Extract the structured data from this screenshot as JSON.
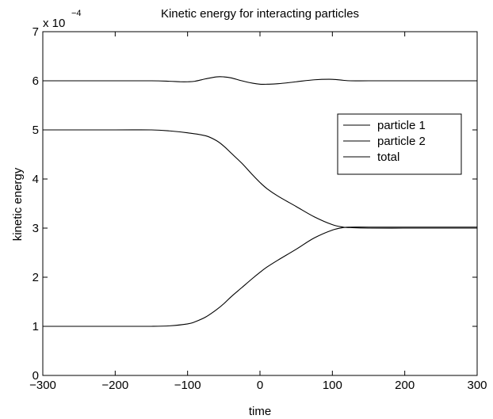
{
  "chart_data": {
    "type": "line",
    "title": "Kinetic energy for interacting particles",
    "xlabel": "time",
    "ylabel": "kinetic energy",
    "xlim": [
      -300,
      300
    ],
    "ylim": [
      0,
      7
    ],
    "y_multiplier_base": "x 10",
    "y_multiplier_exponent": "−4",
    "x_ticks": [
      -300,
      -200,
      -100,
      0,
      100,
      200,
      300
    ],
    "x_tick_labels": [
      "−300",
      "−200",
      "−100",
      "0",
      "100",
      "200",
      "300"
    ],
    "y_ticks": [
      0,
      1,
      2,
      3,
      4,
      5,
      6,
      7
    ],
    "y_tick_labels": [
      "0",
      "1",
      "2",
      "3",
      "4",
      "5",
      "6",
      "7"
    ],
    "grid": false,
    "legend_position": "upper-right",
    "line_color": "#000000",
    "series": [
      {
        "name": "particle 1",
        "x": [
          -300,
          -200,
          -150,
          -125,
          -100,
          -75,
          -60,
          -50,
          -40,
          -25,
          -10,
          0,
          10,
          25,
          50,
          75,
          100,
          115,
          125,
          150,
          200,
          250,
          300
        ],
        "y": [
          5.0,
          5.0,
          5.0,
          4.98,
          4.94,
          4.88,
          4.78,
          4.67,
          4.53,
          4.32,
          4.08,
          3.93,
          3.8,
          3.65,
          3.44,
          3.23,
          3.07,
          3.02,
          3.01,
          3.0,
          3.0,
          3.0,
          3.0
        ]
      },
      {
        "name": "particle 2",
        "x": [
          -300,
          -200,
          -150,
          -125,
          -100,
          -90,
          -75,
          -60,
          -50,
          -40,
          -25,
          -10,
          0,
          10,
          25,
          50,
          75,
          100,
          115,
          125,
          150,
          200,
          250,
          300
        ],
        "y": [
          1.0,
          1.0,
          1.0,
          1.01,
          1.05,
          1.09,
          1.19,
          1.34,
          1.46,
          1.6,
          1.79,
          1.98,
          2.1,
          2.21,
          2.35,
          2.57,
          2.8,
          2.96,
          3.01,
          3.02,
          3.02,
          3.02,
          3.02,
          3.02
        ]
      },
      {
        "name": "total",
        "x": [
          -300,
          -200,
          -150,
          -125,
          -110,
          -100,
          -90,
          -75,
          -60,
          -50,
          -40,
          -25,
          -10,
          0,
          10,
          25,
          50,
          75,
          100,
          115,
          125,
          150,
          200,
          250,
          300
        ],
        "y": [
          6.0,
          6.0,
          6.0,
          5.99,
          5.98,
          5.98,
          5.99,
          6.04,
          6.08,
          6.08,
          6.06,
          6.0,
          5.95,
          5.93,
          5.93,
          5.94,
          5.98,
          6.02,
          6.03,
          6.01,
          6.0,
          6.0,
          6.0,
          6.0,
          6.0
        ]
      }
    ]
  }
}
